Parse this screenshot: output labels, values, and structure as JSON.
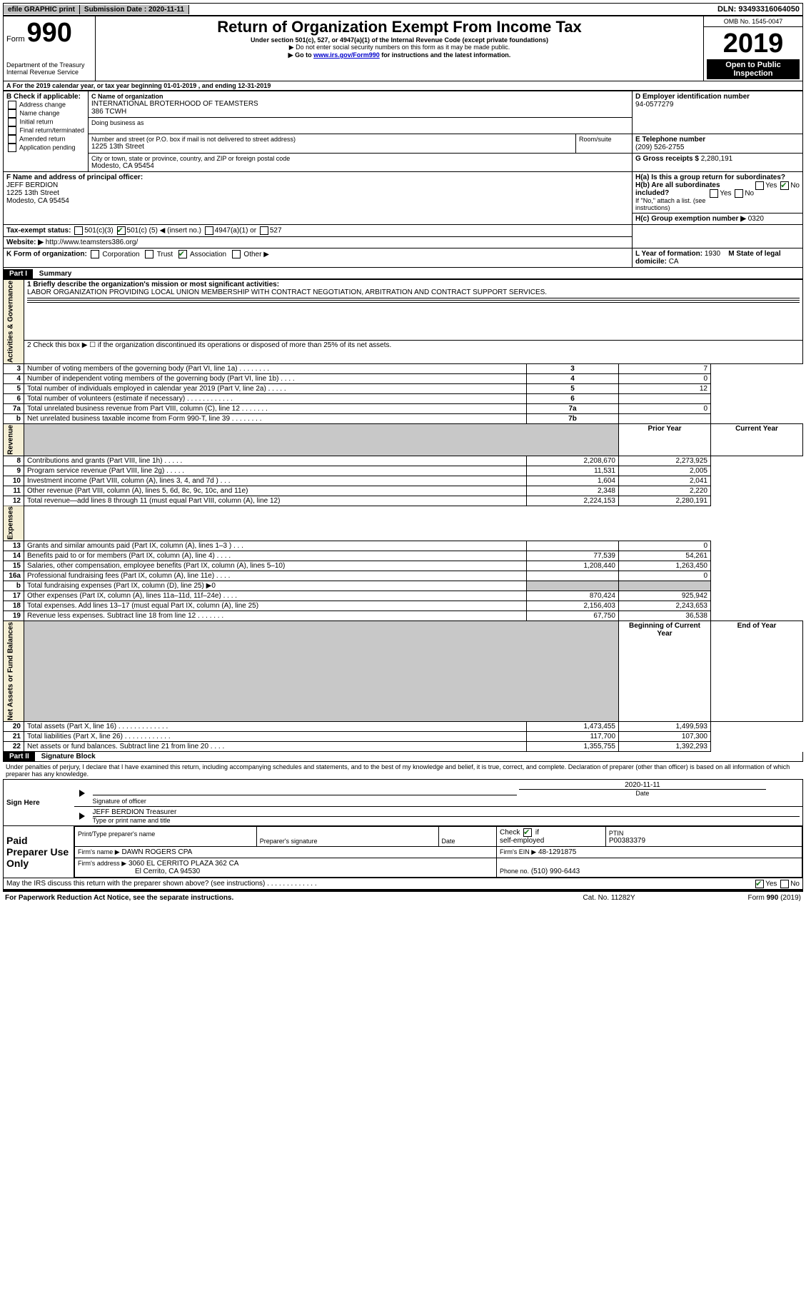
{
  "topbar": {
    "efile": "efile GRAPHIC print",
    "submission_label": "Submission Date :",
    "submission_value": "2020-11-11",
    "dln": "DLN: 93493316064050"
  },
  "header": {
    "form_word": "Form",
    "form_no": "990",
    "title": "Return of Organization Exempt From Income Tax",
    "sub1": "Under section 501(c), 527, or 4947(a)(1) of the Internal Revenue Code (except private foundations)",
    "sub2": "▶ Do not enter social security numbers on this form as it may be made public.",
    "sub3a": "▶ Go to ",
    "sub3_link": "www.irs.gov/Form990",
    "sub3b": " for instructions and the latest information.",
    "omb": "OMB No. 1545-0047",
    "year": "2019",
    "open": "Open to Public Inspection",
    "dept": "Department of the Treasury\nInternal Revenue Service"
  },
  "lineA": "A  For the 2019 calendar year, or tax year beginning 01-01-2019   , and ending 12-31-2019",
  "B": {
    "label": "B Check if applicable:",
    "opts": [
      "Address change",
      "Name change",
      "Initial return",
      "Final return/terminated",
      "Amended return",
      "Application pending"
    ]
  },
  "C": {
    "name_label": "C Name of organization",
    "name": "INTERNATIONAL BROTERHOOD OF TEAMSTERS\n386 TCWH",
    "dba_label": "Doing business as",
    "street_label": "Number and street (or P.O. box if mail is not delivered to street address)",
    "room_label": "Room/suite",
    "street": "1225 13th Street",
    "city_label": "City or town, state or province, country, and ZIP or foreign postal code",
    "city": "Modesto, CA  95454"
  },
  "D": {
    "label": "D Employer identification number",
    "value": "94-0577279"
  },
  "E": {
    "label": "E Telephone number",
    "value": "(209) 526-2755"
  },
  "G": {
    "label": "G Gross receipts $",
    "value": "2,280,191"
  },
  "F": {
    "label": "F  Name and address of principal officer:",
    "name": "JEFF BERDION",
    "street": "1225 13th Street",
    "city": "Modesto, CA  95454"
  },
  "H": {
    "a": "H(a)  Is this a group return for subordinates?",
    "b": "H(b)  Are all subordinates included?",
    "b_note": "If \"No,\" attach a list. (see instructions)",
    "c": "H(c)  Group exemption number ▶",
    "c_val": "0320"
  },
  "I": {
    "label": "Tax-exempt status:",
    "opt1": "501(c)(3)",
    "opt2a": "501(c) (",
    "opt2_num": "5",
    "opt2b": ") ◀ (insert no.)",
    "opt3": "4947(a)(1) or",
    "opt4": "527"
  },
  "J": {
    "label": "Website: ▶",
    "value": "http://www.teamsters386.org/"
  },
  "K": {
    "label": "K Form of organization:",
    "opts": [
      "Corporation",
      "Trust",
      "Association",
      "Other ▶"
    ]
  },
  "L": {
    "label": "L Year of formation:",
    "value": "1930"
  },
  "M": {
    "label": "M State of legal domicile:",
    "value": "CA"
  },
  "part1": {
    "label": "Part I",
    "title": "Summary",
    "line1_label": "1  Briefly describe the organization's mission or most significant activities:",
    "line1_text": "LABOR ORGANIZATION PROVIDING LOCAL UNION MEMBERSHIP WITH CONTRACT NEGOTIATION, ARBITRATION AND CONTRACT SUPPORT SERVICES.",
    "line2": "2  Check this box ▶ ☐  if the organization discontinued its operations or disposed of more than 25% of its net assets.",
    "rows_gov": [
      {
        "n": "3",
        "desc": "Number of voting members of the governing body (Part VI, line 1a)  .   .   .   .   .   .   .   .",
        "box": "3",
        "py": "",
        "cy": "7"
      },
      {
        "n": "4",
        "desc": "Number of independent voting members of the governing body (Part VI, line 1b)  .   .   .   .",
        "box": "4",
        "py": "",
        "cy": "0"
      },
      {
        "n": "5",
        "desc": "Total number of individuals employed in calendar year 2019 (Part V, line 2a)  .   .   .   .   .",
        "box": "5",
        "py": "",
        "cy": "12"
      },
      {
        "n": "6",
        "desc": "Total number of volunteers (estimate if necessary)   .   .   .   .   .   .   .   .   .   .   .   .",
        "box": "6",
        "py": "",
        "cy": ""
      },
      {
        "n": "7a",
        "desc": "Total unrelated business revenue from Part VIII, column (C), line 12   .   .   .   .   .   .   .",
        "box": "7a",
        "py": "",
        "cy": "0"
      },
      {
        "n": "b",
        "desc": "Net unrelated business taxable income from Form 990-T, line 39   .   .   .   .   .   .   .   .",
        "box": "7b",
        "py": "",
        "cy": ""
      }
    ],
    "hdr_py": "Prior Year",
    "hdr_cy": "Current Year",
    "rows_rev": [
      {
        "n": "8",
        "desc": "Contributions and grants (Part VIII, line 1h)   .   .   .   .   .",
        "py": "2,208,670",
        "cy": "2,273,925"
      },
      {
        "n": "9",
        "desc": "Program service revenue (Part VIII, line 2g)   .   .   .   .   .",
        "py": "11,531",
        "cy": "2,005"
      },
      {
        "n": "10",
        "desc": "Investment income (Part VIII, column (A), lines 3, 4, and 7d )   .   .   .",
        "py": "1,604",
        "cy": "2,041"
      },
      {
        "n": "11",
        "desc": "Other revenue (Part VIII, column (A), lines 5, 6d, 8c, 9c, 10c, and 11e)",
        "py": "2,348",
        "cy": "2,220"
      },
      {
        "n": "12",
        "desc": "Total revenue—add lines 8 through 11 (must equal Part VIII, column (A), line 12)",
        "py": "2,224,153",
        "cy": "2,280,191"
      }
    ],
    "rows_exp": [
      {
        "n": "13",
        "desc": "Grants and similar amounts paid (Part IX, column (A), lines 1–3 )   .   .   .",
        "py": "",
        "cy": "0"
      },
      {
        "n": "14",
        "desc": "Benefits paid to or for members (Part IX, column (A), line 4)   .   .   .   .",
        "py": "77,539",
        "cy": "54,261"
      },
      {
        "n": "15",
        "desc": "Salaries, other compensation, employee benefits (Part IX, column (A), lines 5–10)",
        "py": "1,208,440",
        "cy": "1,263,450"
      },
      {
        "n": "16a",
        "desc": "Professional fundraising fees (Part IX, column (A), line 11e)   .   .   .   .",
        "py": "",
        "cy": "0"
      },
      {
        "n": "b",
        "desc": "Total fundraising expenses (Part IX, column (D), line 25) ▶0",
        "py": null,
        "cy": null
      },
      {
        "n": "17",
        "desc": "Other expenses (Part IX, column (A), lines 11a–11d, 11f–24e)   .   .   .   .",
        "py": "870,424",
        "cy": "925,942"
      },
      {
        "n": "18",
        "desc": "Total expenses. Add lines 13–17 (must equal Part IX, column (A), line 25)",
        "py": "2,156,403",
        "cy": "2,243,653"
      },
      {
        "n": "19",
        "desc": "Revenue less expenses. Subtract line 18 from line 12 .   .   .   .   .   .   .",
        "py": "67,750",
        "cy": "36,538"
      }
    ],
    "hdr_boy": "Beginning of Current Year",
    "hdr_eoy": "End of Year",
    "rows_net": [
      {
        "n": "20",
        "desc": "Total assets (Part X, line 16)  .   .   .   .   .   .   .   .   .   .   .   .   .",
        "py": "1,473,455",
        "cy": "1,499,593"
      },
      {
        "n": "21",
        "desc": "Total liabilities (Part X, line 26)  .   .   .   .   .   .   .   .   .   .   .   .",
        "py": "117,700",
        "cy": "107,300"
      },
      {
        "n": "22",
        "desc": "Net assets or fund balances. Subtract line 21 from line 20   .   .   .   .",
        "py": "1,355,755",
        "cy": "1,392,293"
      }
    ],
    "side_gov": "Activities & Governance",
    "side_rev": "Revenue",
    "side_exp": "Expenses",
    "side_net": "Net Assets or Fund Balances"
  },
  "part2": {
    "label": "Part II",
    "title": "Signature Block",
    "decl": "Under penalties of perjury, I declare that I have examined this return, including accompanying schedules and statements, and to the best of my knowledge and belief, it is true, correct, and complete. Declaration of preparer (other than officer) is based on all information of which preparer has any knowledge.",
    "sign_here": "Sign Here",
    "sig_officer": "Signature of officer",
    "sig_date": "2020-11-11",
    "date_label": "Date",
    "typed_name": "JEFF BERDION  Treasurer",
    "typed_label": "Type or print name and title",
    "paid": "Paid Preparer Use Only",
    "p_name_label": "Print/Type preparer's name",
    "p_sig_label": "Preparer's signature",
    "p_date_label": "Date",
    "p_check": "Check ☑ if self-employed",
    "ptin_label": "PTIN",
    "ptin": "P00383379",
    "firm_name_label": "Firm's name    ▶",
    "firm_name": "DAWN ROGERS CPA",
    "firm_ein_label": "Firm's EIN ▶",
    "firm_ein": "48-1291875",
    "firm_addr_label": "Firm's address ▶",
    "firm_addr1": "3060 EL CERRITO PLAZA 362 CA",
    "firm_addr2": "El Cerrito, CA  94530",
    "phone_label": "Phone no.",
    "phone": "(510) 990-6443",
    "discuss": "May the IRS discuss this return with the preparer shown above? (see instructions)   .   .   .   .   .   .   .   .   .   .   .   .   ."
  },
  "footer": {
    "left": "For Paperwork Reduction Act Notice, see the separate instructions.",
    "mid": "Cat. No. 11282Y",
    "right": "Form 990 (2019)"
  }
}
